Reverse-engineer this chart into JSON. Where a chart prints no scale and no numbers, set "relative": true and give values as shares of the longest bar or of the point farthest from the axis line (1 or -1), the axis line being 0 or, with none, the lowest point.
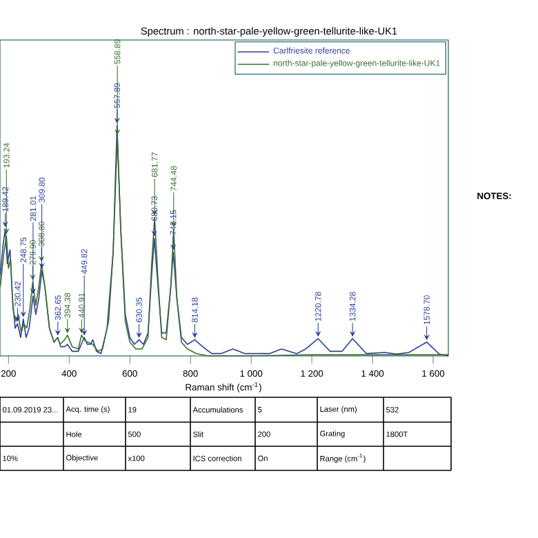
{
  "chart_data": {
    "type": "line",
    "title": "Spectrum : north-star-pale-yellow-green-tellurite-like-UK1",
    "xlabel": "Raman shift (cm$^{-1}$)",
    "relative": true,
    "legend": "top right",
    "xlim": [
      172,
      1650
    ],
    "xticks": [
      {
        "value": 200,
        "label": "200"
      },
      {
        "value": 400,
        "label": "400"
      },
      {
        "value": 600,
        "label": "600"
      },
      {
        "value": 800,
        "label": "800"
      },
      {
        "value": 1000,
        "label": "1 000"
      },
      {
        "value": 1200,
        "label": "1 200"
      },
      {
        "value": 1400,
        "label": "1 400"
      },
      {
        "value": 1600,
        "label": "1 600"
      }
    ],
    "series": [
      {
        "name": "Carlfriesite reference",
        "color": "#2b3f9c",
        "x": [
          173,
          182,
          189.42,
          196,
          205,
          213,
          222,
          230,
          240,
          248.75,
          258,
          268,
          281.01,
          290,
          300,
          309.8,
          320,
          335,
          350,
          362.65,
          372,
          385,
          394,
          410,
          430,
          440,
          449.82,
          460,
          470,
          478,
          490,
          505,
          525,
          545,
          557.89,
          570,
          585,
          600,
          615,
          630.35,
          645,
          660,
          672,
          680.73,
          690,
          705,
          720,
          735,
          743.15,
          755,
          770,
          790,
          814.18,
          840,
          870,
          900,
          940,
          980,
          1020,
          1060,
          1100,
          1150,
          1180,
          1220.78,
          1260,
          1300,
          1334.28,
          1380,
          1440,
          1480,
          1520,
          1578.7,
          1620,
          1650
        ],
        "values": [
          0.35,
          0.48,
          0.55,
          0.4,
          0.46,
          0.25,
          0.12,
          0.14,
          0.08,
          0.16,
          0.08,
          0.12,
          0.26,
          0.18,
          0.25,
          0.37,
          0.3,
          0.12,
          0.06,
          0.08,
          0.04,
          0.04,
          0.05,
          0.02,
          0.02,
          0.05,
          0.08,
          0.05,
          0.05,
          0.07,
          0.02,
          0.01,
          0.12,
          0.45,
          1.0,
          0.55,
          0.18,
          0.08,
          0.05,
          0.07,
          0.05,
          0.1,
          0.35,
          0.51,
          0.35,
          0.1,
          0.1,
          0.3,
          0.45,
          0.25,
          0.08,
          0.05,
          0.07,
          0.04,
          0.01,
          0.01,
          0.03,
          0.01,
          0.01,
          0.01,
          0.03,
          0.01,
          0.03,
          0.075,
          0.02,
          0.02,
          0.075,
          0.01,
          0.015,
          0.008,
          0.015,
          0.06,
          0.008,
          0.0
        ]
      },
      {
        "name": "north-star-pale-yellow-green-tellurite-like-UK1",
        "color": "#3d6e2c",
        "x": [
          173,
          185,
          193.24,
          200,
          207,
          215,
          225,
          232,
          242,
          250,
          260,
          270,
          279.9,
          290,
          300,
          308.8,
          320,
          335,
          350,
          362,
          370,
          385,
          394.38,
          410,
          430,
          440.91,
          450,
          460,
          478,
          495,
          510,
          530,
          545,
          558.89,
          570,
          585,
          600,
          620,
          640,
          660,
          672,
          681.77,
          692,
          705,
          720,
          735,
          744.48,
          755,
          770,
          790,
          820,
          860,
          1000,
          1200,
          1400,
          1650
        ],
        "values": [
          0.3,
          0.45,
          0.52,
          0.38,
          0.42,
          0.2,
          0.15,
          0.18,
          0.1,
          0.14,
          0.12,
          0.2,
          0.32,
          0.22,
          0.3,
          0.4,
          0.3,
          0.12,
          0.06,
          0.08,
          0.05,
          0.07,
          0.09,
          0.04,
          0.03,
          0.09,
          0.07,
          0.06,
          0.05,
          0.02,
          0.03,
          0.15,
          0.45,
          0.95,
          0.55,
          0.15,
          0.06,
          0.03,
          0.03,
          0.08,
          0.4,
          0.6,
          0.35,
          0.08,
          0.07,
          0.3,
          0.55,
          0.25,
          0.06,
          0.03,
          0.01,
          0.0,
          0.0,
          0.005,
          0.005,
          0.005
        ]
      }
    ],
    "annotations": [
      "NOTES:",
      "01.09.2019 23...",
      "Acq. time (s)",
      "19",
      "Accumulations",
      "5",
      "Laser (nm)",
      "532",
      "Hole",
      "500",
      "Slit",
      "200",
      "Grating",
      "1800T",
      "10%",
      "Objective",
      "x100",
      "ICS correction",
      "On",
      "Range (cm$^{-1}$)",
      {
        "text": "189.42",
        "x": 189.42,
        "y": 0.55
      },
      {
        "text": "193.24",
        "x": 193.24,
        "y": 0.52
      },
      {
        "text": "230.42",
        "x": 230,
        "y": 0.14
      },
      {
        "text": "248.75",
        "x": 248.75,
        "y": 0.16
      },
      {
        "text": "279.90",
        "x": 279.9,
        "y": 0.32
      },
      {
        "text": "281.01",
        "x": 281.01,
        "y": 0.26
      },
      {
        "text": "308.80",
        "x": 308.8,
        "y": 0.4
      },
      {
        "text": "309.80",
        "x": 309.8,
        "y": 0.37
      },
      {
        "text": "362.65",
        "x": 362.65,
        "y": 0.08
      },
      {
        "text": "394.38",
        "x": 394.38,
        "y": 0.09
      },
      {
        "text": "440.91",
        "x": 440.91,
        "y": 0.09
      },
      {
        "text": "449.82",
        "x": 449.82,
        "y": 0.08
      },
      {
        "text": "557.89",
        "x": 557.89,
        "y": 1.0
      },
      {
        "text": "558.89",
        "x": 558.89,
        "y": 0.95
      },
      {
        "text": "630.35",
        "x": 630.35,
        "y": 0.07
      },
      {
        "text": "680.73",
        "x": 680.73,
        "y": 0.51
      },
      {
        "text": "681.77",
        "x": 681.77,
        "y": 0.6
      },
      {
        "text": "743.15",
        "x": 743.15,
        "y": 0.45
      },
      {
        "text": "744.48",
        "x": 744.48,
        "y": 0.55
      },
      {
        "text": "814.18",
        "x": 814.18,
        "y": 0.07
      },
      {
        "text": "1220.78",
        "x": 1220.78,
        "y": 0.075
      },
      {
        "text": "1334.28",
        "x": 1334.28,
        "y": 0.075
      },
      {
        "text": "1578.70",
        "x": 1578.7,
        "y": 0.06
      }
    ]
  }
}
